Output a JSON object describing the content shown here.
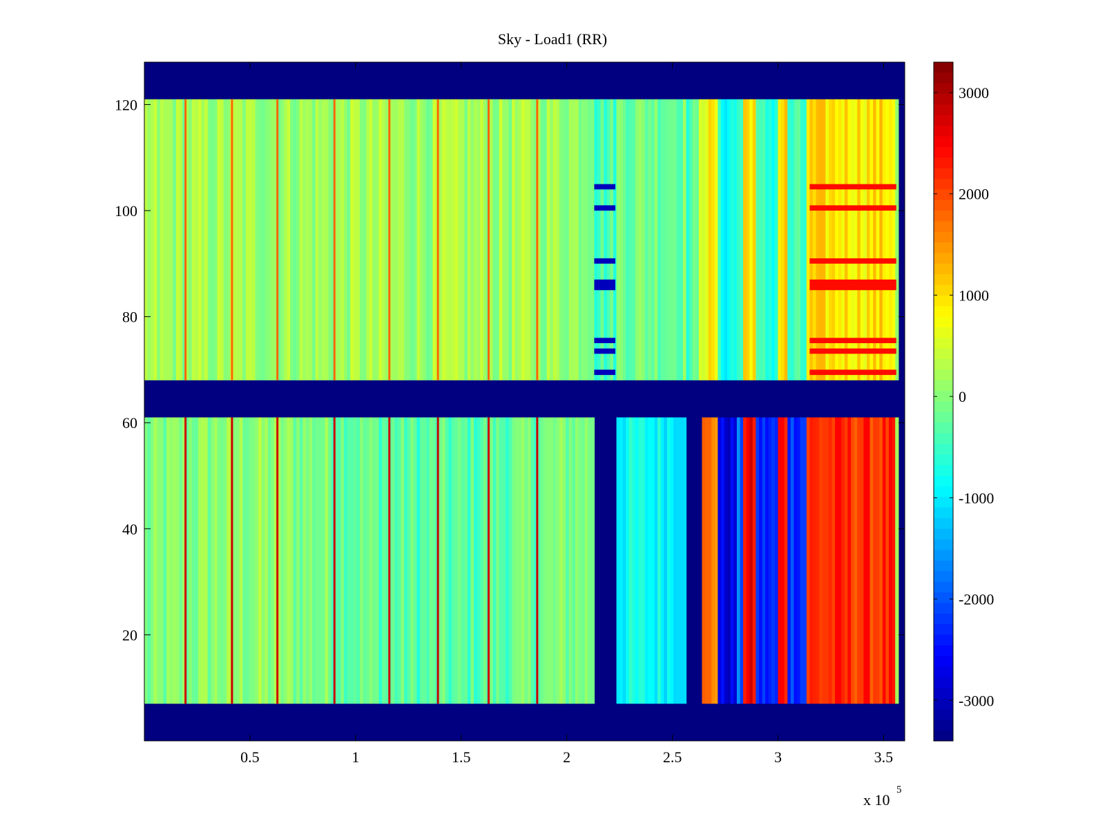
{
  "chart_data": {
    "type": "heatmap",
    "title": "Sky - Load1 (RR)",
    "xlabel": "",
    "ylabel": "",
    "x_exponent_label": "x 10",
    "x_exponent_power": "5",
    "xlim": [
      0,
      360000
    ],
    "ylim": [
      0,
      128
    ],
    "x_ticks": [
      0.5,
      1,
      1.5,
      2,
      2.5,
      3,
      3.5
    ],
    "x_tick_labels": [
      "0.5",
      "1",
      "1.5",
      "2",
      "2.5",
      "3",
      "3.5"
    ],
    "y_ticks": [
      20,
      40,
      60,
      80,
      100,
      120
    ],
    "y_tick_labels": [
      "20",
      "40",
      "60",
      "80",
      "100",
      "120"
    ],
    "colorbar": {
      "colormap": "jet",
      "range": [
        -3400,
        3300
      ],
      "ticks": [
        3000,
        2000,
        1000,
        0,
        -1000,
        -2000,
        -3000
      ],
      "tick_labels": [
        "3000",
        "2000",
        "1000",
        "0",
        "-1000",
        "-2000",
        "-3000"
      ]
    },
    "masked_row_ranges": [
      [
        0,
        7
      ],
      [
        61,
        68
      ],
      [
        121,
        128
      ]
    ],
    "masked_column_ranges_lower_band": [
      [
        213000,
        223000
      ],
      [
        256000,
        263000
      ]
    ],
    "rows": [
      {
        "y": [
          7,
          61
        ],
        "baseline": -150
      },
      {
        "y": [
          68,
          121
        ],
        "baseline": 150
      }
    ],
    "column_features": [
      {
        "x": [
          0,
          213000
        ],
        "value": 0
      },
      {
        "x": [
          213000,
          223000
        ],
        "value": -1500
      },
      {
        "x": [
          223000,
          256000
        ],
        "value": -700
      },
      {
        "x": [
          256000,
          263000
        ],
        "value": -1600
      },
      {
        "x": [
          263000,
          272000
        ],
        "value": 1800
      },
      {
        "x": [
          272000,
          280000
        ],
        "value": -2600
      },
      {
        "x": [
          280000,
          284000
        ],
        "value": -1800
      },
      {
        "x": [
          284000,
          290000
        ],
        "value": 2600
      },
      {
        "x": [
          290000,
          300000
        ],
        "value": -2200
      },
      {
        "x": [
          300000,
          305000
        ],
        "value": 2500
      },
      {
        "x": [
          305000,
          313000
        ],
        "value": -2000
      },
      {
        "x": [
          313000,
          356000
        ],
        "value": 2300
      }
    ],
    "vertical_streaks_x": [
      19500,
      41500,
      63000,
      90000,
      116000,
      139000,
      163000,
      186000
    ]
  }
}
